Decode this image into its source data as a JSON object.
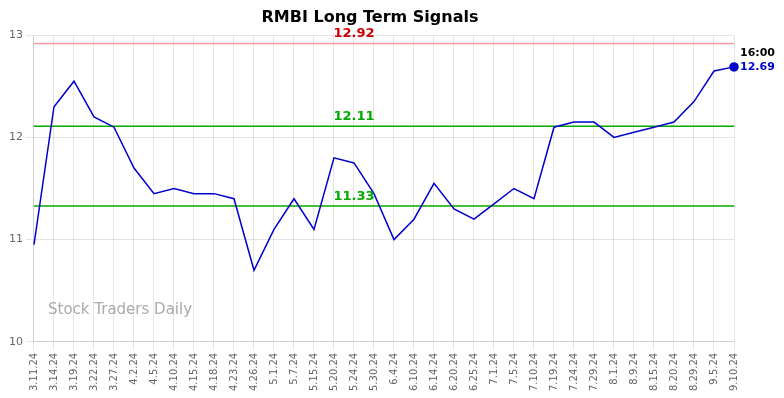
{
  "chart_data": {
    "type": "line",
    "title": "RMBI Long Term Signals",
    "categories": [
      "3.11.24",
      "3.14.24",
      "3.19.24",
      "3.22.24",
      "3.27.24",
      "4.2.24",
      "4.5.24",
      "4.10.24",
      "4.15.24",
      "4.18.24",
      "4.23.24",
      "4.26.24",
      "5.1.24",
      "5.7.24",
      "5.15.24",
      "5.20.24",
      "5.24.24",
      "5.30.24",
      "6.4.24",
      "6.10.24",
      "6.14.24",
      "6.20.24",
      "6.25.24",
      "7.1.24",
      "7.5.24",
      "7.10.24",
      "7.19.24",
      "7.24.24",
      "7.29.24",
      "8.1.24",
      "8.9.24",
      "8.15.24",
      "8.20.24",
      "8.29.24",
      "9.5.24",
      "9.10.24"
    ],
    "values": [
      10.95,
      12.3,
      12.55,
      12.2,
      12.1,
      11.7,
      11.45,
      11.5,
      11.45,
      11.45,
      11.4,
      10.7,
      11.1,
      11.4,
      11.1,
      11.8,
      11.75,
      11.45,
      11.0,
      11.2,
      11.55,
      11.3,
      11.2,
      11.35,
      11.5,
      11.4,
      12.1,
      12.15,
      12.15,
      12.0,
      12.05,
      12.1,
      12.15,
      12.35,
      12.65,
      12.69
    ],
    "color": "#0000cc",
    "ylim": [
      10,
      13
    ],
    "yticks": [
      10,
      11,
      12,
      13
    ],
    "grid": true,
    "reference_lines": [
      {
        "value": 12.92,
        "color": "#ff9999",
        "label": {
          "text": "12.92",
          "color": "#cc0000"
        }
      },
      {
        "value": 12.11,
        "color": "#00aa00",
        "label": {
          "text": "12.11",
          "color": "#00aa00"
        }
      },
      {
        "value": 11.33,
        "color": "#00aa00",
        "label": {
          "text": "11.33",
          "color": "#00aa00"
        }
      }
    ],
    "last_time_label": {
      "text": "16:00",
      "color": "#000000"
    },
    "last_price_label": {
      "text": "12.69",
      "value": 12.69,
      "color": "#0000cc"
    },
    "watermark": {
      "text": "Stock Traders Daily",
      "color": "#aaaaaa"
    }
  }
}
